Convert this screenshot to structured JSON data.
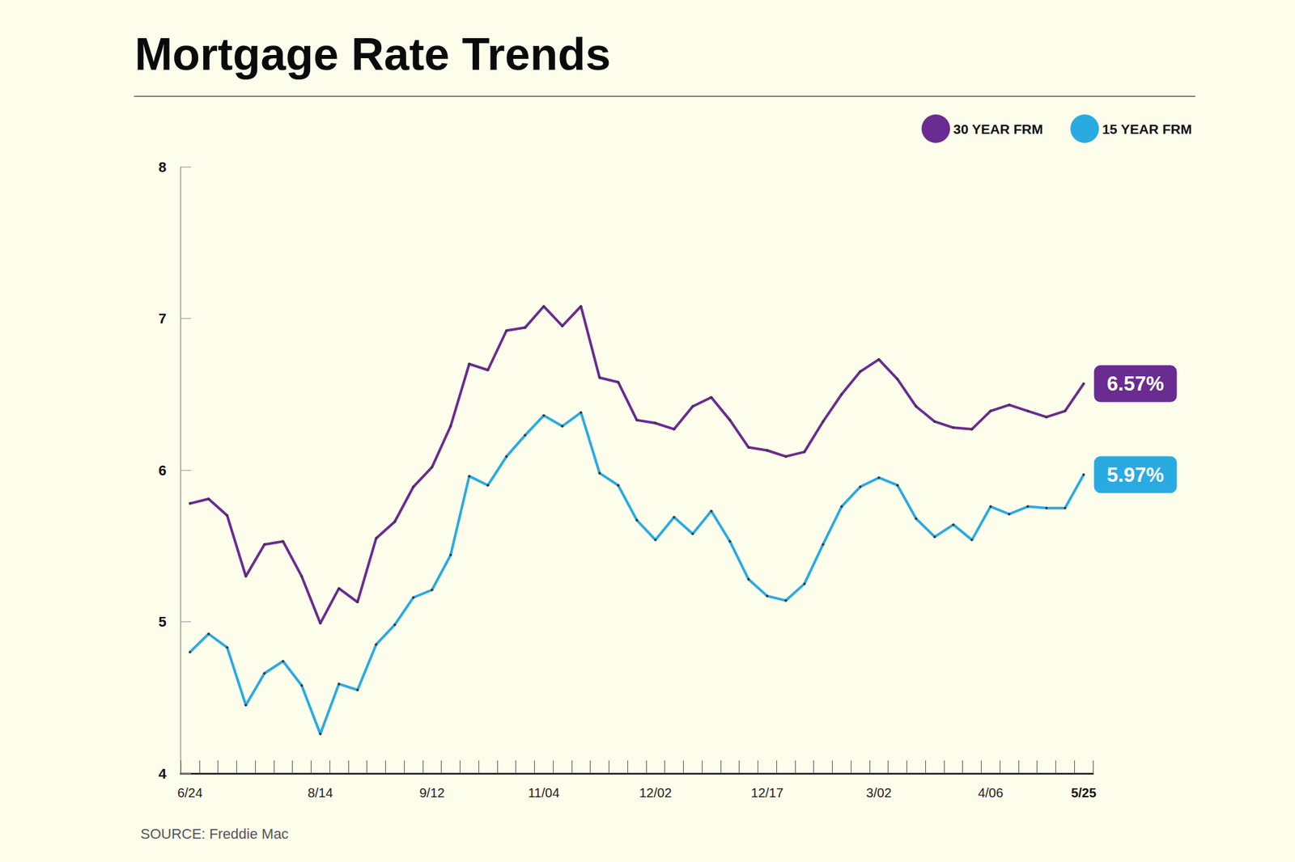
{
  "chart_data": {
    "type": "line",
    "title": "Mortgage Rate Trends",
    "source": "SOURCE: Freddie Mac",
    "categories": [
      "6/24",
      null,
      null,
      null,
      null,
      null,
      null,
      "8/14",
      null,
      null,
      null,
      null,
      null,
      "9/12",
      null,
      null,
      null,
      null,
      null,
      "11/04",
      null,
      null,
      null,
      null,
      null,
      "12/02",
      null,
      null,
      null,
      null,
      null,
      "12/17",
      null,
      null,
      null,
      null,
      null,
      "3/02",
      null,
      null,
      null,
      null,
      null,
      "4/06",
      null,
      null,
      null,
      null,
      "5/25"
    ],
    "series": [
      {
        "name": "30 YEAR FRM",
        "color": "#6a2c91",
        "marker": "circle",
        "line_style": "solid",
        "values": [
          5.78,
          5.81,
          5.7,
          5.3,
          5.51,
          5.53,
          5.3,
          4.99,
          5.22,
          5.13,
          5.55,
          5.66,
          5.89,
          6.02,
          6.29,
          6.7,
          6.66,
          6.92,
          6.94,
          7.08,
          6.95,
          7.08,
          6.61,
          6.58,
          6.33,
          6.31,
          6.27,
          6.42,
          6.48,
          6.33,
          6.15,
          6.13,
          6.09,
          6.12,
          6.32,
          6.5,
          6.65,
          6.73,
          6.6,
          6.42,
          6.32,
          6.28,
          6.27,
          6.39,
          6.43,
          6.39,
          6.35,
          6.39,
          6.57
        ],
        "value_labels": [
          null,
          null,
          null,
          null,
          null,
          null,
          null,
          null,
          null,
          null,
          null,
          null,
          null,
          null,
          null,
          null,
          null,
          null,
          null,
          null,
          null,
          null,
          null,
          null,
          null,
          null,
          null,
          null,
          null,
          null,
          null,
          null,
          null,
          null,
          null,
          null,
          null,
          null,
          null,
          null,
          null,
          null,
          null,
          null,
          null,
          null,
          null,
          null,
          "6.57%"
        ]
      },
      {
        "name": "15 YEAR FRM",
        "color": "#29abe2",
        "marker": "circle",
        "line_style": "solid",
        "values": [
          4.8,
          4.92,
          4.83,
          4.45,
          4.66,
          4.74,
          4.58,
          4.26,
          4.59,
          4.55,
          4.85,
          4.98,
          5.16,
          5.21,
          5.44,
          5.96,
          5.9,
          6.09,
          6.23,
          6.36,
          6.29,
          6.38,
          5.98,
          5.9,
          5.67,
          5.54,
          5.69,
          5.58,
          5.73,
          5.53,
          5.28,
          5.17,
          5.14,
          5.25,
          5.51,
          5.76,
          5.89,
          5.95,
          5.9,
          5.68,
          5.56,
          5.64,
          5.54,
          5.76,
          5.71,
          5.76,
          5.75,
          5.75,
          5.97
        ],
        "value_labels": [
          null,
          null,
          null,
          null,
          null,
          null,
          null,
          null,
          null,
          null,
          null,
          null,
          null,
          null,
          null,
          null,
          null,
          null,
          null,
          null,
          null,
          null,
          null,
          null,
          null,
          null,
          null,
          null,
          null,
          null,
          null,
          null,
          null,
          null,
          null,
          null,
          null,
          null,
          null,
          null,
          null,
          null,
          null,
          null,
          null,
          null,
          null,
          null,
          "5.97%"
        ]
      }
    ],
    "ylim": [
      4,
      8
    ],
    "yticks": [
      4,
      5,
      6,
      7,
      8
    ],
    "grid": false,
    "legend": "upper right",
    "data_labels": true
  }
}
